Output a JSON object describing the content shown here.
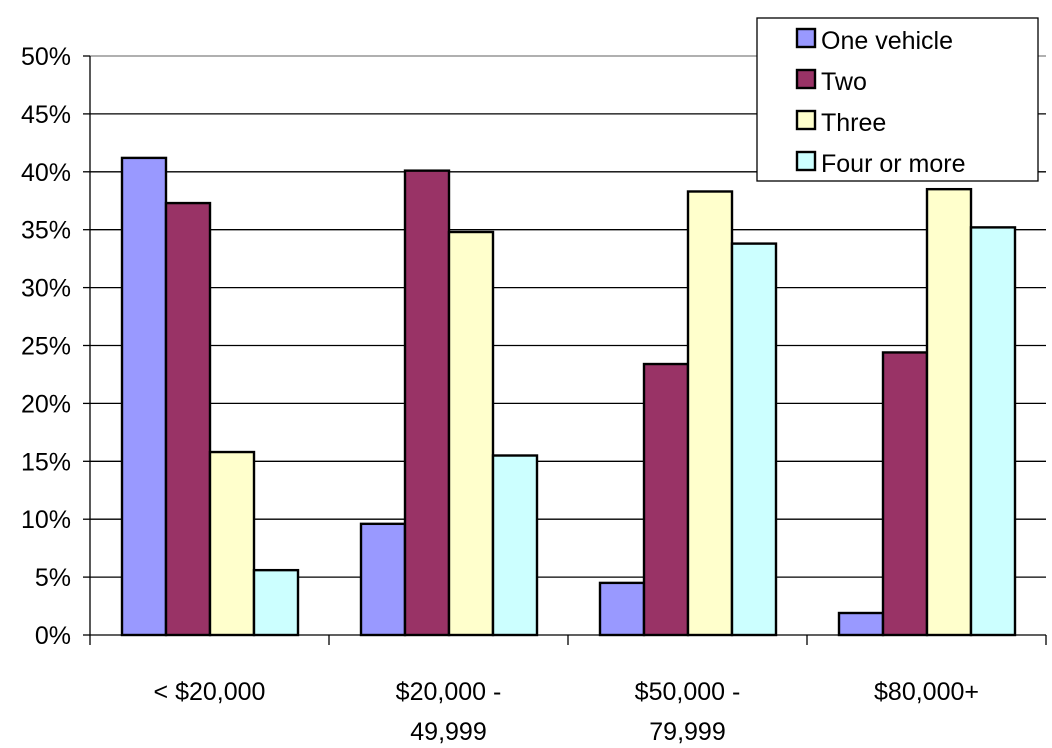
{
  "chart_data": {
    "type": "bar",
    "title": "",
    "xlabel": "",
    "ylabel": "",
    "ylim": [
      0,
      50
    ],
    "yticks": [
      "0%",
      "5%",
      "10%",
      "15%",
      "20%",
      "25%",
      "30%",
      "35%",
      "40%",
      "45%",
      "50%"
    ],
    "grid": true,
    "legend_position": "top-right",
    "categories": [
      [
        "< $20,000"
      ],
      [
        "$20,000 -",
        "49,999"
      ],
      [
        "$50,000 -",
        "79,999"
      ],
      [
        "$80,000+"
      ]
    ],
    "series": [
      {
        "name": "One vehicle",
        "color": "#9999ff",
        "values": [
          41.2,
          9.6,
          4.5,
          1.9
        ]
      },
      {
        "name": "Two",
        "color": "#993366",
        "values": [
          37.3,
          40.1,
          23.4,
          24.4
        ]
      },
      {
        "name": "Three",
        "color": "#ffffcc",
        "values": [
          15.8,
          34.8,
          38.3,
          38.5
        ]
      },
      {
        "name": "Four or more",
        "color": "#ccffff",
        "values": [
          5.6,
          15.5,
          33.8,
          35.2
        ]
      }
    ]
  }
}
